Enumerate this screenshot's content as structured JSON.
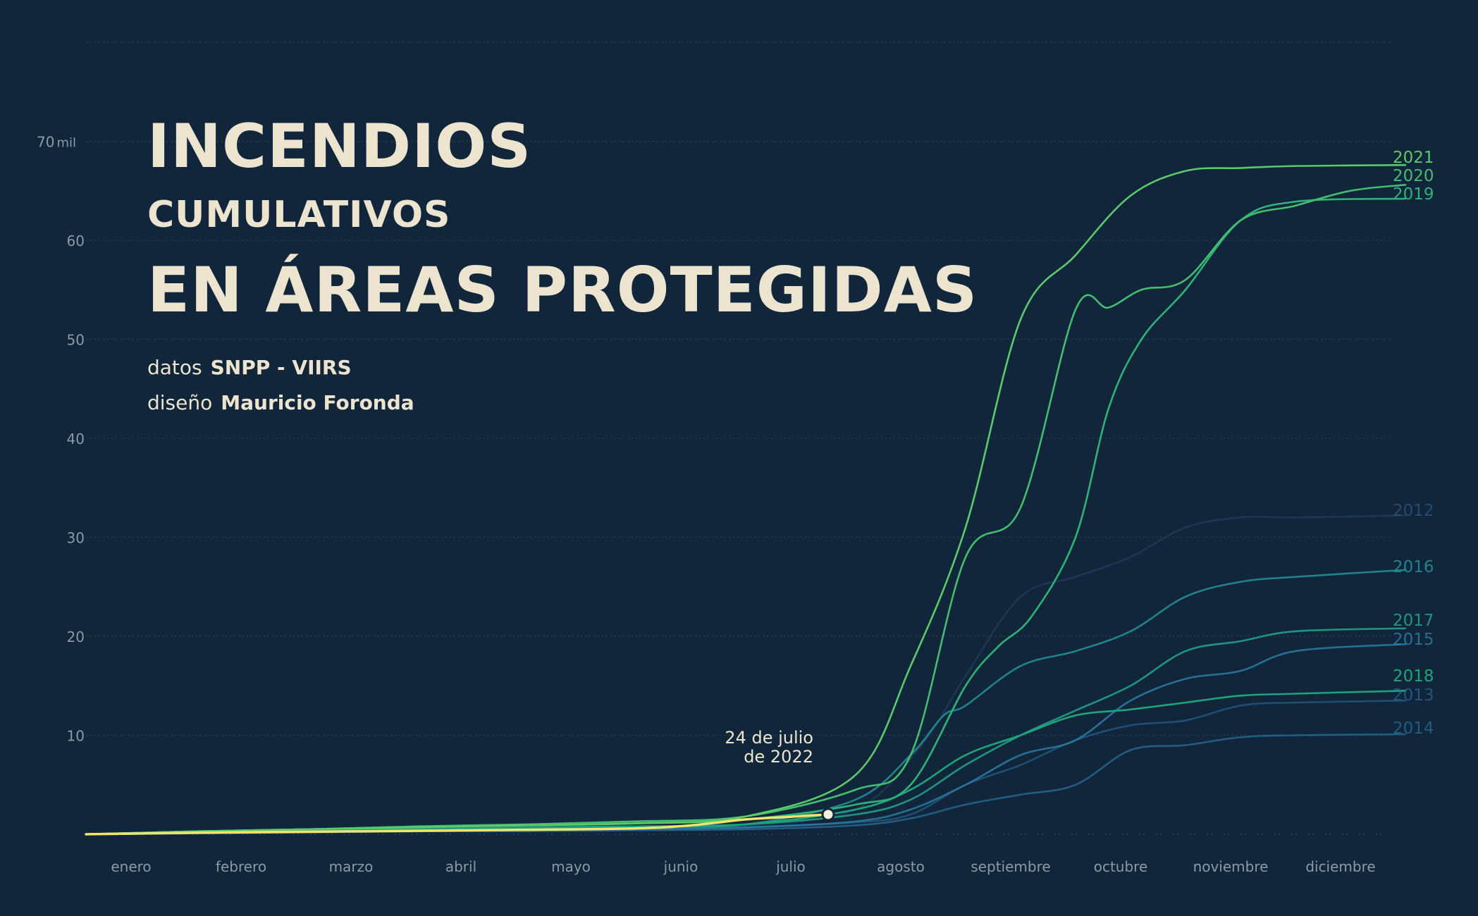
{
  "title": {
    "line1": "INCENDIOS",
    "line2": "CUMULATIVOS",
    "line3": "EN ÁREAS PROTEGIDAS"
  },
  "credits": {
    "data_label": "datos",
    "data_value": "SNPP - VIIRS",
    "design_label": "diseño",
    "design_value": "Mauricio Foronda"
  },
  "annotation": {
    "line1": "24 de julio",
    "line2": "de 2022"
  },
  "colors": {
    "background": "#11263a",
    "grid": "#2e4357",
    "axis_text": "#8c99a6",
    "title": "#ece4cf",
    "highlight": "#f2e46a"
  },
  "chart_data": {
    "type": "line",
    "x_categories": [
      "enero",
      "febrero",
      "marzo",
      "abril",
      "mayo",
      "junio",
      "julio",
      "agosto",
      "septiembre",
      "octubre",
      "noviembre",
      "diciembre"
    ],
    "y_ticks": [
      "10",
      "20",
      "30",
      "40",
      "50",
      "60",
      "70"
    ],
    "y_unit": "mil",
    "ylim": [
      0,
      80
    ],
    "xlim": [
      0,
      12
    ],
    "grid": true,
    "legend": "right-end labels",
    "series": [
      {
        "name": "2012",
        "color": "#2f5a88",
        "opacity": 0.35,
        "x": [
          0,
          1,
          2,
          3,
          4,
          5,
          6,
          7,
          7.6,
          8,
          8.5,
          9,
          9.5,
          10,
          10.5,
          11,
          12
        ],
        "y": [
          0,
          0.1,
          0.2,
          0.3,
          0.4,
          0.6,
          0.9,
          2.5,
          9,
          16,
          24,
          26,
          28,
          31,
          32,
          32,
          32.2
        ]
      },
      {
        "name": "2013",
        "color": "#2c6a96",
        "opacity": 0.6,
        "x": [
          0,
          1,
          2,
          3,
          4,
          5,
          6,
          7,
          7.5,
          8,
          8.5,
          9,
          9.5,
          10,
          10.5,
          11,
          12
        ],
        "y": [
          0,
          0.1,
          0.2,
          0.3,
          0.4,
          0.5,
          0.7,
          1.2,
          2,
          5,
          7,
          9.5,
          11,
          11.5,
          13,
          13.3,
          13.5
        ]
      },
      {
        "name": "2014",
        "color": "#2b6e9a",
        "opacity": 0.75,
        "x": [
          0,
          1,
          2,
          3,
          4,
          5,
          6,
          7,
          7.5,
          8,
          8.5,
          9,
          9.5,
          10,
          10.5,
          11,
          12
        ],
        "y": [
          0,
          0.1,
          0.2,
          0.3,
          0.3,
          0.4,
          0.5,
          0.9,
          1.6,
          3,
          4,
          5,
          8.5,
          9,
          9.8,
          10,
          10.1
        ]
      },
      {
        "name": "2015",
        "color": "#2c7ca3",
        "opacity": 0.85,
        "x": [
          0,
          1,
          2,
          3,
          4,
          5,
          6,
          7,
          7.5,
          8,
          8.5,
          9,
          9.5,
          10,
          10.5,
          11,
          12
        ],
        "y": [
          0,
          0.1,
          0.2,
          0.3,
          0.4,
          0.5,
          0.7,
          1.3,
          2.5,
          5,
          8,
          9.5,
          13.5,
          15.7,
          16.5,
          18.5,
          19.2
        ]
      },
      {
        "name": "2016",
        "color": "#248e93",
        "opacity": 0.9,
        "x": [
          0,
          1,
          2,
          3,
          4,
          5,
          6,
          7,
          7.5,
          7.8,
          8,
          8.5,
          9,
          9.5,
          10,
          10.5,
          11,
          12
        ],
        "y": [
          0,
          0.2,
          0.4,
          0.5,
          0.7,
          0.8,
          1,
          3.5,
          8,
          12,
          13,
          17,
          18.5,
          20.5,
          24,
          25.5,
          26,
          26.7
        ]
      },
      {
        "name": "2017",
        "color": "#229a85",
        "opacity": 0.95,
        "x": [
          0,
          1,
          2,
          3,
          4,
          5,
          6,
          7,
          7.5,
          8,
          8.5,
          9,
          9.5,
          10,
          10.5,
          11,
          12
        ],
        "y": [
          0,
          0.2,
          0.4,
          0.5,
          0.7,
          0.8,
          1,
          2,
          3.5,
          7,
          10,
          12.5,
          15,
          18.5,
          19.5,
          20.5,
          20.8
        ]
      },
      {
        "name": "2018",
        "color": "#1fa37c",
        "opacity": 1,
        "x": [
          0,
          1,
          2,
          3,
          4,
          5,
          6,
          7,
          7.5,
          8,
          8.5,
          9,
          9.5,
          10,
          10.5,
          11,
          12
        ],
        "y": [
          0,
          0.2,
          0.3,
          0.5,
          0.6,
          0.8,
          1,
          2.5,
          4.5,
          8,
          10,
          12,
          12.6,
          13.3,
          14,
          14.2,
          14.5
        ]
      },
      {
        "name": "2019",
        "color": "#2fb27a",
        "opacity": 1,
        "x": [
          0,
          1,
          2,
          3,
          4,
          5,
          6,
          7,
          7.5,
          8,
          8.3,
          8.6,
          9,
          9.3,
          9.6,
          10,
          10.5,
          11,
          12
        ],
        "y": [
          0,
          0.3,
          0.5,
          0.7,
          0.9,
          1.1,
          1.5,
          3,
          5,
          15,
          19,
          22,
          30,
          43,
          50,
          55,
          62,
          63.9,
          64.2
        ]
      },
      {
        "name": "2020",
        "color": "#45bd6f",
        "opacity": 1,
        "x": [
          0,
          1,
          2,
          3,
          4,
          5,
          6,
          7,
          7.5,
          8,
          8.5,
          9,
          9.3,
          9.6,
          10,
          10.5,
          11,
          11.5,
          12
        ],
        "y": [
          0,
          0.3,
          0.5,
          0.8,
          1,
          1.3,
          1.8,
          4.5,
          8,
          28,
          33,
          53,
          53.2,
          55,
          56,
          62,
          63.5,
          65,
          65.6
        ]
      },
      {
        "name": "2021",
        "color": "#5cc96b",
        "opacity": 1,
        "x": [
          0,
          1,
          2,
          3,
          4,
          5,
          6,
          7,
          7.5,
          8,
          8.5,
          9,
          9.5,
          10,
          10.5,
          11,
          12
        ],
        "y": [
          0,
          0.3,
          0.5,
          0.7,
          0.9,
          1.1,
          1.8,
          6,
          17,
          31,
          52,
          58.5,
          64.5,
          67,
          67.3,
          67.5,
          67.6
        ]
      },
      {
        "name": "",
        "color": "#f2e46a",
        "opacity": 1,
        "highlight": true,
        "x": [
          0,
          1,
          2,
          3,
          4,
          5,
          5.5,
          6,
          6.3,
          6.6,
          6.75
        ],
        "y": [
          0,
          0.15,
          0.25,
          0.35,
          0.45,
          0.6,
          0.9,
          1.5,
          1.7,
          1.9,
          2.0
        ]
      }
    ]
  }
}
